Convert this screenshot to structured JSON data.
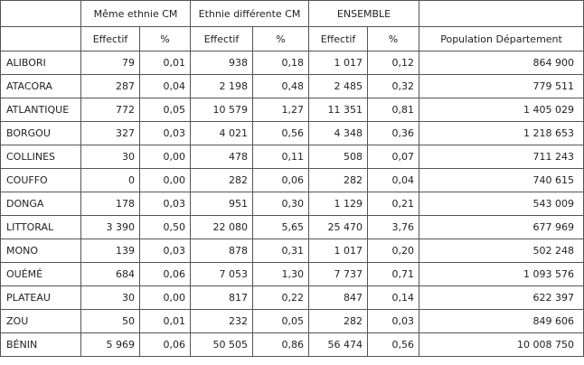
{
  "table": {
    "group_headers": [
      "Même ethnie CM",
      "Ethnie différente CM",
      "ENSEMBLE"
    ],
    "sub_headers": [
      "Effectif",
      "%",
      "Effectif",
      "%",
      "Effectif",
      "%",
      "Population Département"
    ],
    "rows": [
      {
        "name": "ALIBORI",
        "c1": "79",
        "c2": "0,01",
        "c3": "938",
        "c4": "0,18",
        "c5": "1 017",
        "c6": "0,12",
        "pop": "864 900"
      },
      {
        "name": "ATACORA",
        "c1": "287",
        "c2": "0,04",
        "c3": "2 198",
        "c4": "0,48",
        "c5": "2 485",
        "c6": "0,32",
        "pop": "779 511"
      },
      {
        "name": "ATLANTIQUE",
        "c1": "772",
        "c2": "0,05",
        "c3": "10 579",
        "c4": "1,27",
        "c5": "11 351",
        "c6": "0,81",
        "pop": "1 405 029"
      },
      {
        "name": "BORGOU",
        "c1": "327",
        "c2": "0,03",
        "c3": "4 021",
        "c4": "0,56",
        "c5": "4 348",
        "c6": "0,36",
        "pop": "1 218 653"
      },
      {
        "name": "COLLINES",
        "c1": "30",
        "c2": "0,00",
        "c3": "478",
        "c4": "0,11",
        "c5": "508",
        "c6": "0,07",
        "pop": "711 243"
      },
      {
        "name": "COUFFO",
        "c1": "0",
        "c2": "0,00",
        "c3": "282",
        "c4": "0,06",
        "c5": "282",
        "c6": "0,04",
        "pop": "740 615"
      },
      {
        "name": "DONGA",
        "c1": "178",
        "c2": "0,03",
        "c3": "951",
        "c4": "0,30",
        "c5": "1 129",
        "c6": "0,21",
        "pop": "543 009"
      },
      {
        "name": "LITTORAL",
        "c1": "3 390",
        "c2": "0,50",
        "c3": "22 080",
        "c4": "5,65",
        "c5": "25 470",
        "c6": "3,76",
        "pop": "677 969"
      },
      {
        "name": "MONO",
        "c1": "139",
        "c2": "0,03",
        "c3": "878",
        "c4": "0,31",
        "c5": "1 017",
        "c6": "0,20",
        "pop": "502 248"
      },
      {
        "name": "OUÉMÉ",
        "c1": "684",
        "c2": "0,06",
        "c3": "7 053",
        "c4": "1,30",
        "c5": "7 737",
        "c6": "0,71",
        "pop": "1 093 576"
      },
      {
        "name": "PLATEAU",
        "c1": "30",
        "c2": "0,00",
        "c3": "817",
        "c4": "0,22",
        "c5": "847",
        "c6": "0,14",
        "pop": "622 397"
      },
      {
        "name": "ZOU",
        "c1": "50",
        "c2": "0,01",
        "c3": "232",
        "c4": "0,05",
        "c5": "282",
        "c6": "0,03",
        "pop": "849 606"
      },
      {
        "name": "BÉNIN",
        "c1": "5 969",
        "c2": "0,06",
        "c3": "50 505",
        "c4": "0,86",
        "c5": "56 474",
        "c6": "0,56",
        "pop": "10 008 750"
      }
    ]
  }
}
